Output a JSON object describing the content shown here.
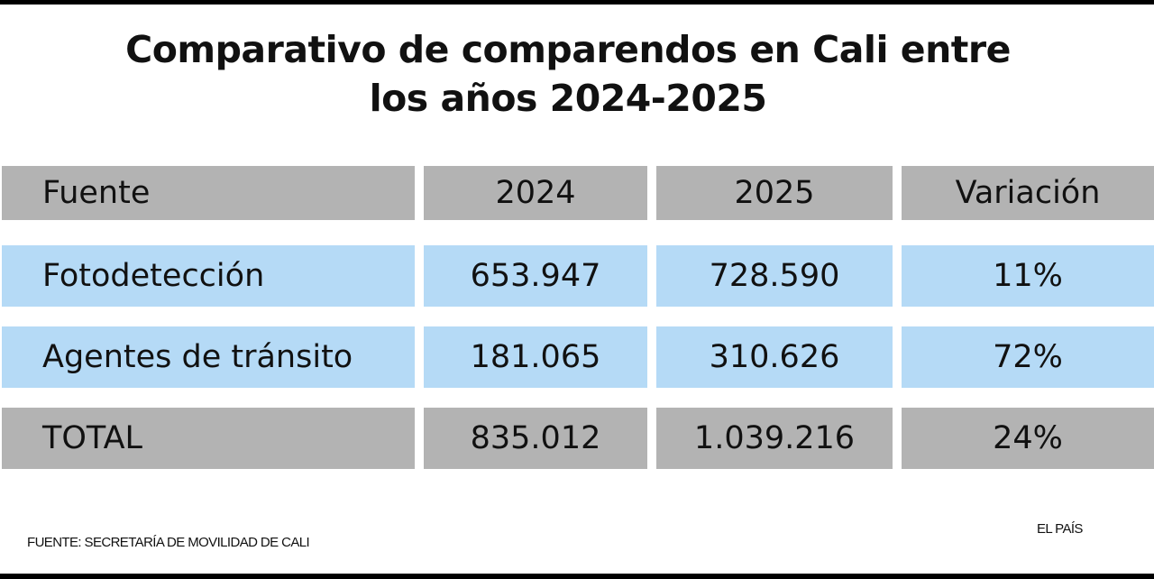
{
  "chart_data": {
    "type": "table",
    "title": "Comparativo de comparendos en Cali entre los años 2024-2025",
    "title_lines": [
      "Comparativo de comparendos en Cali entre",
      "los años 2024-2025"
    ],
    "columns": [
      "Fuente",
      "2024",
      "2025",
      "Variación"
    ],
    "rows": [
      [
        "Fotodetección",
        "653.947",
        "728.590",
        "11%"
      ],
      [
        "Agentes de tránsito",
        "181.065",
        "310.626",
        "72%"
      ],
      [
        "TOTAL",
        "835.012",
        "1.039.216",
        "24%"
      ]
    ],
    "row_colors": [
      "#b3b3b3",
      "#b5daf6",
      "#b5daf6",
      "#b3b3b3"
    ]
  },
  "footer": {
    "source": "FUENTE: SECRETARÍA DE MOVILIDAD DE CALI",
    "brand": "EL PAÍS"
  }
}
